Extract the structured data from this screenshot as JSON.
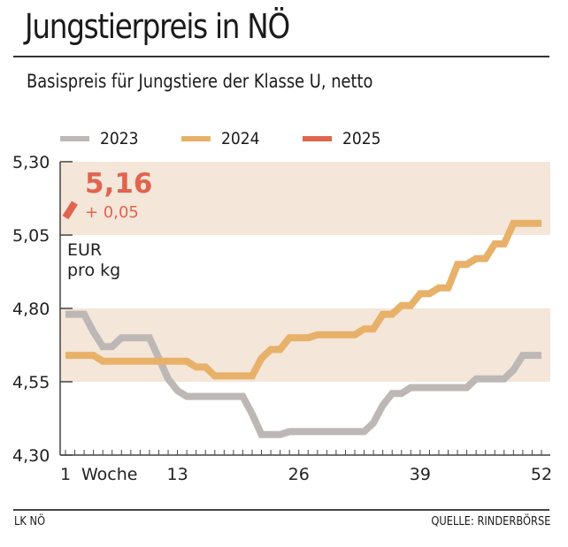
{
  "header": {
    "title": "Jungstierpreis in NÖ",
    "subtitle": "Basispreis für Jungstiere der Klasse U, netto"
  },
  "footer": {
    "left": "LK NÖ",
    "right": "QUELLE: RINDERBÖRSE"
  },
  "chart_data": {
    "type": "line",
    "title": "Jungstierpreis in NÖ",
    "subtitle": "Basispreis für Jungstiere der Klasse U, netto",
    "xlabel": "Woche",
    "ylabel": "EUR pro kg",
    "ylabel_lines": [
      "EUR",
      "pro kg"
    ],
    "xlim": [
      1,
      52
    ],
    "ylim": [
      4.3,
      5.3
    ],
    "x_ticks": [
      1,
      13,
      26,
      39,
      52
    ],
    "x_tick_labels": [
      "1",
      "13",
      "26",
      "39",
      "52"
    ],
    "y_ticks": [
      4.3,
      4.55,
      4.8,
      5.05,
      5.3
    ],
    "y_tick_labels": [
      "4,30",
      "4,55",
      "4,80",
      "5,05",
      "5,30"
    ],
    "bands": [
      [
        4.55,
        4.8
      ],
      [
        5.05,
        5.3
      ]
    ],
    "band_color": "#f4e6d8",
    "legend_position": "top",
    "grid": false,
    "series": [
      {
        "name": "2023",
        "color": "#bdb8b5",
        "x": [
          1,
          2,
          3,
          4,
          5,
          6,
          7,
          8,
          9,
          10,
          11,
          12,
          13,
          14,
          15,
          16,
          17,
          18,
          19,
          20,
          21,
          22,
          23,
          24,
          25,
          26,
          27,
          28,
          29,
          30,
          31,
          32,
          33,
          34,
          35,
          36,
          37,
          38,
          39,
          40,
          41,
          42,
          43,
          44,
          45,
          46,
          47,
          48,
          49,
          50,
          51,
          52
        ],
        "values": [
          4.78,
          4.78,
          4.78,
          4.72,
          4.67,
          4.67,
          4.7,
          4.7,
          4.7,
          4.7,
          4.63,
          4.56,
          4.52,
          4.5,
          4.5,
          4.5,
          4.5,
          4.5,
          4.5,
          4.5,
          4.44,
          4.37,
          4.37,
          4.37,
          4.38,
          4.38,
          4.38,
          4.38,
          4.38,
          4.38,
          4.38,
          4.38,
          4.38,
          4.41,
          4.47,
          4.51,
          4.51,
          4.53,
          4.53,
          4.53,
          4.53,
          4.53,
          4.53,
          4.53,
          4.56,
          4.56,
          4.56,
          4.56,
          4.59,
          4.64,
          4.64,
          4.64
        ]
      },
      {
        "name": "2024",
        "color": "#e8b169",
        "x": [
          1,
          2,
          3,
          4,
          5,
          6,
          7,
          8,
          9,
          10,
          11,
          12,
          13,
          14,
          15,
          16,
          17,
          18,
          19,
          20,
          21,
          22,
          23,
          24,
          25,
          26,
          27,
          28,
          29,
          30,
          31,
          32,
          33,
          34,
          35,
          36,
          37,
          38,
          39,
          40,
          41,
          42,
          43,
          44,
          45,
          46,
          47,
          48,
          49,
          50,
          51,
          52
        ],
        "values": [
          4.64,
          4.64,
          4.64,
          4.64,
          4.62,
          4.62,
          4.62,
          4.62,
          4.62,
          4.62,
          4.62,
          4.62,
          4.62,
          4.62,
          4.6,
          4.6,
          4.57,
          4.57,
          4.57,
          4.57,
          4.57,
          4.63,
          4.66,
          4.66,
          4.7,
          4.7,
          4.7,
          4.71,
          4.71,
          4.71,
          4.71,
          4.71,
          4.73,
          4.73,
          4.78,
          4.78,
          4.81,
          4.81,
          4.85,
          4.85,
          4.87,
          4.87,
          4.95,
          4.95,
          4.97,
          4.97,
          5.02,
          5.02,
          5.09,
          5.09,
          5.09,
          5.09
        ]
      },
      {
        "name": "2025",
        "color": "#e0644f",
        "x": [
          1,
          2
        ],
        "values": [
          5.11,
          5.16
        ]
      }
    ],
    "annotations": [
      {
        "text": "5,16",
        "series": "2025",
        "kind": "current-value"
      },
      {
        "text": "+ 0,05",
        "series": "2025",
        "kind": "change"
      }
    ]
  }
}
